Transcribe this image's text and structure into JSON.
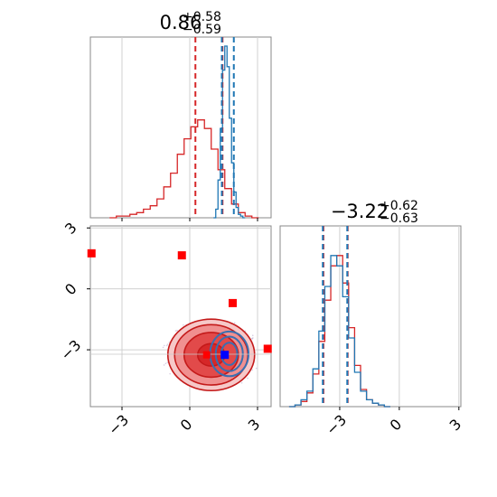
{
  "chart_data": [
    {
      "panel": "top-left histogram",
      "type": "line",
      "title": {
        "value": "0.86",
        "plus": "+0.58",
        "minus": "−0.59"
      },
      "xlim": [
        -4.4,
        3.6
      ],
      "grid": true,
      "ticks": [
        -3,
        0,
        3
      ],
      "tick_labels_shown": false,
      "series": [
        {
          "color": "#d62728",
          "x": [
            -3.4,
            -3.1,
            -2.8,
            -2.5,
            -2.2,
            -1.9,
            -1.6,
            -1.3,
            -1.0,
            -0.7,
            -0.4,
            -0.1,
            0.2,
            0.5,
            0.8,
            1.1,
            1.4,
            1.7,
            2.0,
            2.3,
            2.6,
            2.9
          ],
          "values": [
            0,
            0.01,
            0.01,
            0.02,
            0.03,
            0.05,
            0.07,
            0.11,
            0.18,
            0.26,
            0.37,
            0.46,
            0.53,
            0.57,
            0.52,
            0.4,
            0.28,
            0.17,
            0.08,
            0.03,
            0.01,
            0
          ]
        },
        {
          "color": "#1f77b4",
          "x": [
            1.1,
            1.2,
            1.3,
            1.4,
            1.5,
            1.6,
            1.7,
            1.8,
            1.9,
            2.0,
            2.1,
            2.2,
            2.3,
            2.4
          ],
          "values": [
            0,
            0.05,
            0.22,
            0.52,
            0.86,
            1.0,
            0.88,
            0.58,
            0.32,
            0.15,
            0.06,
            0.02,
            0.01,
            0
          ]
        }
      ],
      "vlines": [
        {
          "x": 0.25,
          "color": "#d62728"
        },
        {
          "x": 1.45,
          "color": "#d62728"
        },
        {
          "x": 1.42,
          "color": "#1f77b4"
        },
        {
          "x": 1.95,
          "color": "#1f77b4"
        }
      ]
    },
    {
      "panel": "bottom-left 2D density",
      "type": "scatter",
      "xlim": [
        -4.4,
        3.6
      ],
      "ylim": [
        -5.8,
        3.1
      ],
      "grid": true,
      "xticks": [
        "−3",
        "0",
        "3"
      ],
      "yticks": [
        "3",
        "0",
        "−3"
      ],
      "ytick_values": [
        3,
        0,
        -3
      ],
      "xtick_values": [
        -3,
        0,
        3
      ],
      "crosshair": {
        "x": 0.86,
        "y": -3.22
      },
      "red_points": [
        {
          "x": -4.35,
          "y": 1.75
        },
        {
          "x": -0.35,
          "y": 1.65
        },
        {
          "x": 1.9,
          "y": -0.7
        },
        {
          "x": 3.45,
          "y": -2.95
        }
      ],
      "red_inner_point": {
        "x": 0.75,
        "y": -3.25
      },
      "blue_point": {
        "x": 1.55,
        "y": -3.25
      },
      "red_contour": {
        "cx": 0.95,
        "cy": -3.25,
        "levels": [
          0.5,
          1.0,
          1.35,
          1.6
        ]
      },
      "blue_contour": {
        "cx": 1.75,
        "cy": -3.2
      }
    },
    {
      "panel": "bottom-right histogram",
      "type": "line",
      "title": {
        "value": "−3.22",
        "plus": "+0.62",
        "minus": "−0.63"
      },
      "xlim": [
        -6.0,
        3.1
      ],
      "grid": true,
      "xticks": [
        "−3",
        "0",
        "3"
      ],
      "xtick_values": [
        -3,
        0,
        3
      ],
      "series": [
        {
          "color": "#d62728",
          "x": [
            -5.4,
            -5.1,
            -4.8,
            -4.5,
            -4.2,
            -3.9,
            -3.6,
            -3.3,
            -3.0,
            -2.7,
            -2.4,
            -2.1,
            -1.8,
            -1.5,
            -1.2,
            -0.9,
            -0.6
          ],
          "values": [
            0,
            0.01,
            0.03,
            0.08,
            0.19,
            0.38,
            0.62,
            0.82,
            0.88,
            0.72,
            0.46,
            0.24,
            0.1,
            0.04,
            0.02,
            0.01,
            0
          ]
        },
        {
          "color": "#1f77b4",
          "x": [
            -5.4,
            -5.1,
            -4.8,
            -4.5,
            -4.2,
            -3.9,
            -3.6,
            -3.3,
            -3.0,
            -2.7,
            -2.4,
            -2.1,
            -1.8,
            -1.5,
            -1.2,
            -0.9,
            -0.6
          ],
          "values": [
            0,
            0.01,
            0.04,
            0.09,
            0.22,
            0.44,
            0.7,
            0.88,
            0.82,
            0.64,
            0.4,
            0.2,
            0.09,
            0.04,
            0.02,
            0.01,
            0
          ]
        }
      ],
      "vlines": [
        {
          "x": -3.82,
          "color": "#d62728"
        },
        {
          "x": -2.6,
          "color": "#d62728"
        },
        {
          "x": -3.85,
          "color": "#1f77b4"
        },
        {
          "x": -2.62,
          "color": "#1f77b4"
        }
      ]
    }
  ]
}
